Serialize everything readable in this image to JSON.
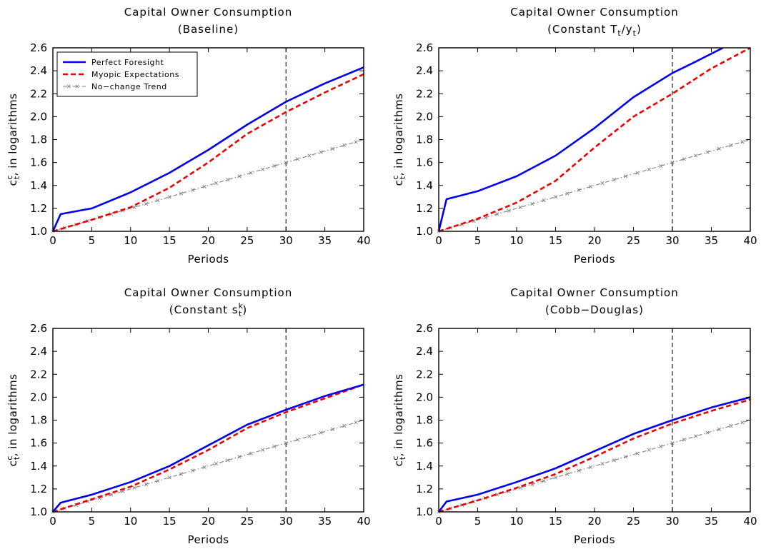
{
  "figure": {
    "xlabel": "Periods",
    "ylabel": "c",
    "ylabel_sup": "c",
    "ylabel_sub": "t",
    "ylabel_rest": ", in logarithms",
    "xticks": [
      0,
      5,
      10,
      15,
      20,
      25,
      30,
      35,
      40
    ],
    "yticks": [
      "1.0",
      "1.2",
      "1.4",
      "1.6",
      "1.8",
      "2.0",
      "2.2",
      "2.4",
      "2.6"
    ],
    "legend": {
      "entries": [
        "Perfect Foresight",
        "Myopic Expectations",
        "No−change Trend"
      ],
      "placement": "top-left",
      "panel": 0
    },
    "colors": {
      "perfect_foresight": "#0000ee",
      "myopic": "#ee0000",
      "trend": "#808080",
      "vline": "#333333"
    }
  },
  "chart_data": [
    {
      "type": "line",
      "title_line1": "Capital Owner Consumption",
      "title_line2": "(Baseline)",
      "xlim": [
        0,
        40
      ],
      "ylim": [
        1.0,
        2.6
      ],
      "vline_x": 30,
      "series": [
        {
          "name": "Perfect Foresight",
          "x": [
            0,
            1,
            5,
            10,
            15,
            20,
            25,
            30,
            35,
            40
          ],
          "y": [
            1.0,
            1.15,
            1.2,
            1.34,
            1.51,
            1.71,
            1.93,
            2.13,
            2.29,
            2.43
          ]
        },
        {
          "name": "Myopic Expectations",
          "x": [
            0,
            5,
            10,
            15,
            20,
            25,
            30,
            35,
            40
          ],
          "y": [
            1.0,
            1.1,
            1.21,
            1.38,
            1.6,
            1.85,
            2.04,
            2.21,
            2.37
          ]
        },
        {
          "name": "No−change Trend",
          "x": [
            0,
            40
          ],
          "y": [
            1.0,
            1.8
          ]
        }
      ]
    },
    {
      "type": "line",
      "title_line1": "Capital Owner Consumption",
      "title_line2": "(Constant T",
      "title_sub1": "t",
      "title_mid": "/y",
      "title_sub2": "t",
      "title_end": ")",
      "xlim": [
        0,
        40
      ],
      "ylim": [
        1.0,
        2.6
      ],
      "vline_x": 30,
      "series": [
        {
          "name": "Perfect Foresight",
          "x": [
            0,
            1,
            5,
            10,
            15,
            20,
            25,
            30,
            33,
            36.5
          ],
          "y": [
            1.0,
            1.28,
            1.35,
            1.48,
            1.66,
            1.9,
            2.17,
            2.38,
            2.48,
            2.6
          ]
        },
        {
          "name": "Myopic Expectations",
          "x": [
            0,
            5,
            10,
            15,
            20,
            25,
            30,
            35,
            40
          ],
          "y": [
            1.0,
            1.11,
            1.25,
            1.44,
            1.73,
            2.0,
            2.2,
            2.42,
            2.6
          ]
        },
        {
          "name": "No−change Trend",
          "x": [
            0,
            40
          ],
          "y": [
            1.0,
            1.8
          ]
        }
      ]
    },
    {
      "type": "line",
      "title_line1": "Capital Owner Consumption",
      "title_line2": "(Constant s",
      "title_sup": "k",
      "title_sub": "t",
      "title_end": ")",
      "xlim": [
        0,
        40
      ],
      "ylim": [
        1.0,
        2.6
      ],
      "vline_x": 30,
      "series": [
        {
          "name": "Perfect Foresight",
          "x": [
            0,
            1,
            5,
            10,
            15,
            20,
            25,
            30,
            35,
            40
          ],
          "y": [
            1.0,
            1.08,
            1.15,
            1.26,
            1.4,
            1.58,
            1.76,
            1.89,
            2.01,
            2.11
          ]
        },
        {
          "name": "Myopic Expectations",
          "x": [
            0,
            5,
            10,
            15,
            20,
            25,
            30,
            35,
            40
          ],
          "y": [
            1.0,
            1.11,
            1.22,
            1.37,
            1.54,
            1.73,
            1.87,
            1.99,
            2.11
          ]
        },
        {
          "name": "No−change Trend",
          "x": [
            0,
            40
          ],
          "y": [
            1.0,
            1.8
          ]
        }
      ]
    },
    {
      "type": "line",
      "title_line1": "Capital Owner Consumption",
      "title_line2": "(Cobb−Douglas)",
      "xlim": [
        0,
        40
      ],
      "ylim": [
        1.0,
        2.6
      ],
      "vline_x": 30,
      "series": [
        {
          "name": "Perfect Foresight",
          "x": [
            0,
            1,
            5,
            10,
            15,
            20,
            25,
            30,
            35,
            40
          ],
          "y": [
            1.0,
            1.09,
            1.15,
            1.26,
            1.38,
            1.53,
            1.68,
            1.8,
            1.91,
            2.0
          ]
        },
        {
          "name": "Myopic Expectations",
          "x": [
            0,
            5,
            10,
            15,
            20,
            25,
            30,
            35,
            40
          ],
          "y": [
            1.0,
            1.1,
            1.21,
            1.33,
            1.48,
            1.64,
            1.77,
            1.88,
            1.98
          ]
        },
        {
          "name": "No−change Trend",
          "x": [
            0,
            40
          ],
          "y": [
            1.0,
            1.8
          ]
        }
      ]
    }
  ]
}
